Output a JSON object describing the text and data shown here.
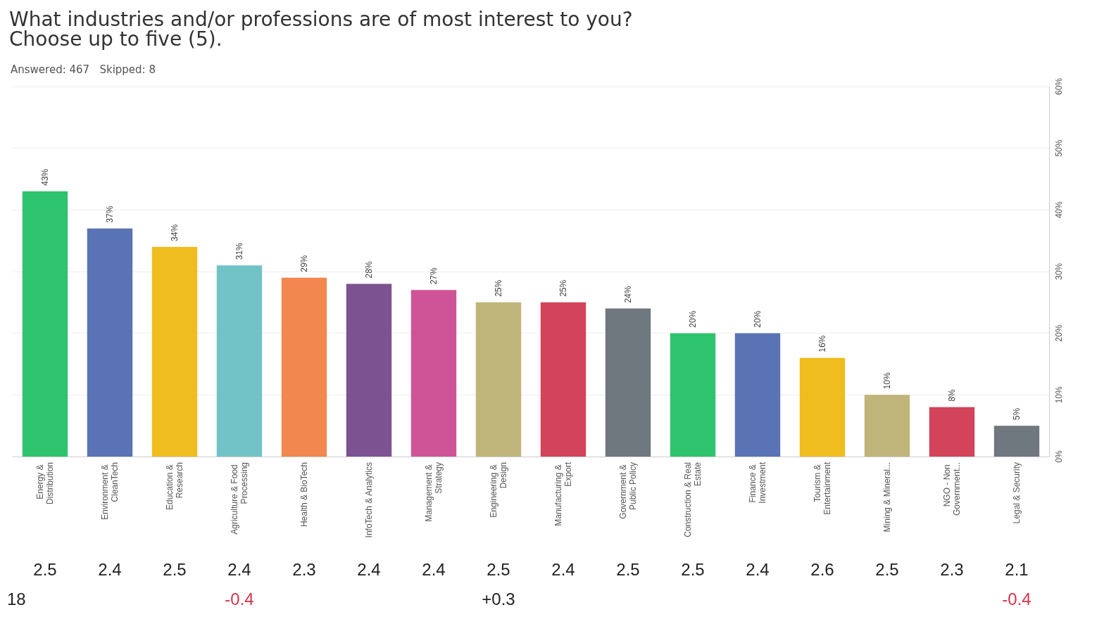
{
  "chart_data": {
    "type": "bar",
    "title": "What industries and/or professions are of most interest to you? Choose up to five (5).",
    "subtitle": "Answered: 467   Skipped: 8",
    "categories": [
      "Energy & Distribution",
      "Environment & CleanTech",
      "Education & Research",
      "Agriculture & Food Processing",
      "Health & BioTech",
      "InfoTech & Analytics",
      "Management & Strategy",
      "Engineering & Design",
      "Manufacturing & Export",
      "Government & Public Policy",
      "Construction & Real Estate",
      "Finance & Investment",
      "Tourism & Entertainment",
      "Mining & Mineral...",
      "NGO - Non Government...",
      "Legal & Security"
    ],
    "values": [
      43,
      37,
      34,
      31,
      29,
      28,
      27,
      25,
      25,
      24,
      20,
      20,
      16,
      10,
      8,
      5
    ],
    "value_labels": [
      "43%",
      "37%",
      "34%",
      "31%",
      "29%",
      "28%",
      "27%",
      "25%",
      "25%",
      "24%",
      "20%",
      "20%",
      "16%",
      "10%",
      "8%",
      "5%"
    ],
    "colors": [
      "#2ec46e",
      "#5a73b4",
      "#f0bd1e",
      "#72c3c8",
      "#f2874f",
      "#7c5390",
      "#cf5497",
      "#bfb57a",
      "#d3435a",
      "#6f777f",
      "#2ec46e",
      "#5a73b4",
      "#f0bd1e",
      "#bfb57a",
      "#d3435a",
      "#6f777f"
    ],
    "ylim": [
      0,
      60
    ],
    "yticks": [
      {
        "value": 0,
        "label": "0%"
      },
      {
        "value": 10,
        "label": "10%"
      },
      {
        "value": 20,
        "label": "20%"
      },
      {
        "value": 30,
        "label": "30%"
      },
      {
        "value": 40,
        "label": "40%"
      },
      {
        "value": 50,
        "label": "50%"
      },
      {
        "value": 60,
        "label": "60%"
      }
    ],
    "grid": "y",
    "annotations": [
      "2.5",
      "2.4",
      "2.5",
      "2.4",
      "2.3",
      "2.4",
      "2.4",
      "2.5",
      "2.4",
      "2.5",
      "2.5",
      "2.4",
      "2.6",
      "2.5",
      "2.3",
      "2.1",
      "18",
      "-0.4",
      "+0.3",
      "-0.4"
    ]
  }
}
